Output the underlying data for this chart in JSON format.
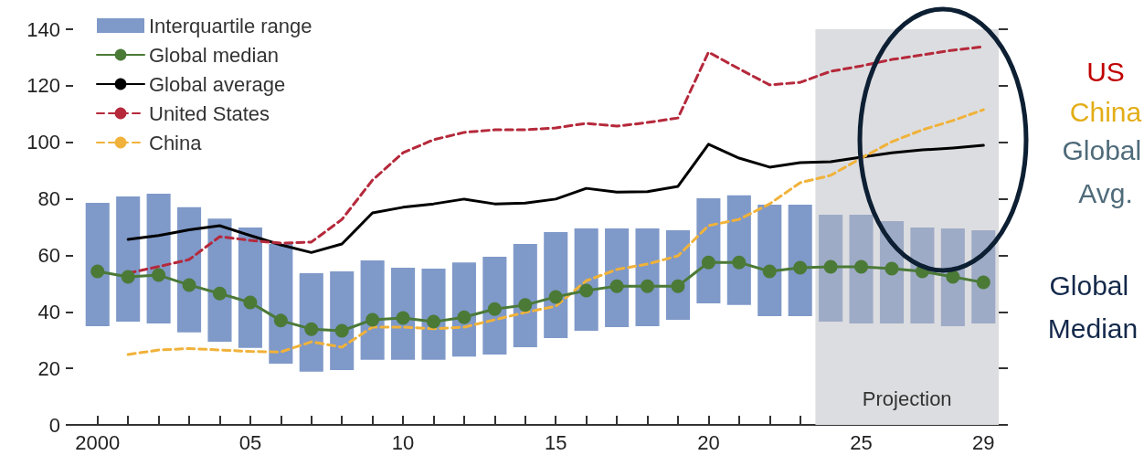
{
  "chart_data": {
    "type": "line",
    "x": [
      2000,
      2001,
      2002,
      2003,
      2004,
      2005,
      2006,
      2007,
      2008,
      2009,
      2010,
      2011,
      2012,
      2013,
      2014,
      2015,
      2016,
      2017,
      2018,
      2019,
      2020,
      2021,
      2022,
      2023,
      2024,
      2025,
      2026,
      2027,
      2028,
      2029
    ],
    "xlim": [
      1999.2,
      2029.5
    ],
    "xticks": [
      {
        "value": 2000,
        "label": "2000"
      },
      {
        "value": 2001,
        "label": null
      },
      {
        "value": 2002,
        "label": null
      },
      {
        "value": 2003,
        "label": null
      },
      {
        "value": 2004,
        "label": null
      },
      {
        "value": 2005,
        "label": "05"
      },
      {
        "value": 2006,
        "label": null
      },
      {
        "value": 2007,
        "label": null
      },
      {
        "value": 2008,
        "label": null
      },
      {
        "value": 2009,
        "label": null
      },
      {
        "value": 2010,
        "label": "10"
      },
      {
        "value": 2011,
        "label": null
      },
      {
        "value": 2012,
        "label": null
      },
      {
        "value": 2013,
        "label": null
      },
      {
        "value": 2014,
        "label": null
      },
      {
        "value": 2015,
        "label": "15"
      },
      {
        "value": 2016,
        "label": null
      },
      {
        "value": 2017,
        "label": null
      },
      {
        "value": 2018,
        "label": null
      },
      {
        "value": 2019,
        "label": null
      },
      {
        "value": 2020,
        "label": "20"
      },
      {
        "value": 2021,
        "label": null
      },
      {
        "value": 2022,
        "label": null
      },
      {
        "value": 2023,
        "label": null
      },
      {
        "value": 2024,
        "label": null
      },
      {
        "value": 2025,
        "label": "25"
      },
      {
        "value": 2026,
        "label": null
      },
      {
        "value": 2027,
        "label": null
      },
      {
        "value": 2028,
        "label": null
      },
      {
        "value": 2029,
        "label": "29"
      }
    ],
    "ylim": [
      0,
      140
    ],
    "yticks": [
      0,
      20,
      40,
      60,
      80,
      100,
      120,
      140
    ],
    "grid": false,
    "legend": "top left",
    "series": [
      {
        "name": "Interquartile range",
        "type": "bar",
        "color": "#7f99c9",
        "base": [
          34.9,
          36.5,
          35.9,
          32.7,
          29.4,
          27.2,
          21.7,
          18.8,
          19.4,
          23,
          23,
          23,
          24.2,
          24.9,
          27.5,
          30.7,
          33.3,
          34.6,
          34.9,
          37.2,
          43,
          42.4,
          38.5,
          38.5,
          36.5,
          35.9,
          35.9,
          35.9,
          34.9,
          35.9
        ],
        "values": [
          43.7,
          44.3,
          45.9,
          44.3,
          43.6,
          42.6,
          42.3,
          34.9,
          34.9,
          35.2,
          32.6,
          32.3,
          33.3,
          34.6,
          36.5,
          37.5,
          36.2,
          34.9,
          34.6,
          31.7,
          37.2,
          38.8,
          39.4,
          39.4,
          37.9,
          38.5,
          36.2,
          33.9,
          34.6,
          33
        ],
        "colors": [
          "#7f99c9",
          "#7f99c9",
          "#7f99c9",
          "#7f99c9",
          "#7f99c9",
          "#7f99c9",
          "#7f99c9",
          "#7f99c9",
          "#7f99c9",
          "#7f99c9",
          "#7f99c9",
          "#7f99c9",
          "#7f99c9",
          "#7f99c9",
          "#7f99c9",
          "#7f99c9",
          "#7f99c9",
          "#7f99c9",
          "#7f99c9",
          "#7f99c9",
          "#7f99c9",
          "#7f99c9",
          "#7f99c9",
          "#7f99c9",
          "#9eabc6",
          "#9eabc6",
          "#9eabc6",
          "#9eabc6",
          "#9eabc6",
          "#9eabc6"
        ]
      },
      {
        "name": "Global median",
        "color": "#4b7a37",
        "marker": "circle",
        "line_style": "solid",
        "values": [
          54.3,
          52.4,
          53,
          49.5,
          46.5,
          43.3,
          36.9,
          33.9,
          33.3,
          37.2,
          37.8,
          36.5,
          38.1,
          41,
          42.4,
          45.3,
          47.5,
          49.1,
          49.1,
          49.1,
          57.5,
          57.5,
          54.3,
          55.6,
          55.9,
          55.9,
          55.3,
          54.3,
          52.4,
          50.4
        ]
      },
      {
        "name": "Global average",
        "color": "#000000",
        "marker": "none",
        "line_style": "solid",
        "values": [
          null,
          65.6,
          67,
          69,
          70.5,
          67,
          63.7,
          61,
          64,
          75,
          77,
          78.2,
          79.9,
          78.2,
          78.5,
          79.9,
          83.7,
          82.4,
          82.5,
          84.4,
          99.3,
          94.4,
          91.2,
          92.8,
          93.1,
          94.7,
          96.3,
          97.3,
          98,
          98.9
        ]
      },
      {
        "name": "United States",
        "color": "#b5293b",
        "marker": "none",
        "line_style": "dashed",
        "values": [
          null,
          53.7,
          56,
          58.5,
          66.6,
          65.3,
          64.3,
          64.7,
          72.7,
          86.6,
          96.3,
          100.9,
          103.5,
          104.4,
          104.4,
          105.1,
          106.7,
          105.7,
          107,
          108.6,
          131.9,
          126,
          120.3,
          121.2,
          125.1,
          127,
          129.3,
          130.9,
          132.6,
          133.8
        ]
      },
      {
        "name": "China",
        "color": "#f0b23a",
        "marker": "none",
        "line_style": "dashed",
        "values": [
          null,
          24.9,
          26.5,
          27,
          26.5,
          26,
          25.8,
          29.4,
          27.5,
          34.6,
          34.6,
          34,
          34.6,
          37.2,
          39.8,
          42,
          51,
          55,
          56.9,
          59.8,
          70.5,
          72.7,
          78.2,
          85.7,
          88.3,
          94.4,
          100.2,
          104.4,
          107.7,
          111.5
        ]
      }
    ],
    "bands": [
      {
        "axis": "x",
        "from": 2023.5,
        "to": 2029.5,
        "label": "Projection",
        "color": "#dcdde0"
      }
    ],
    "annotations": [
      "US",
      "China",
      "Global Avg.",
      "Global Median"
    ]
  }
}
